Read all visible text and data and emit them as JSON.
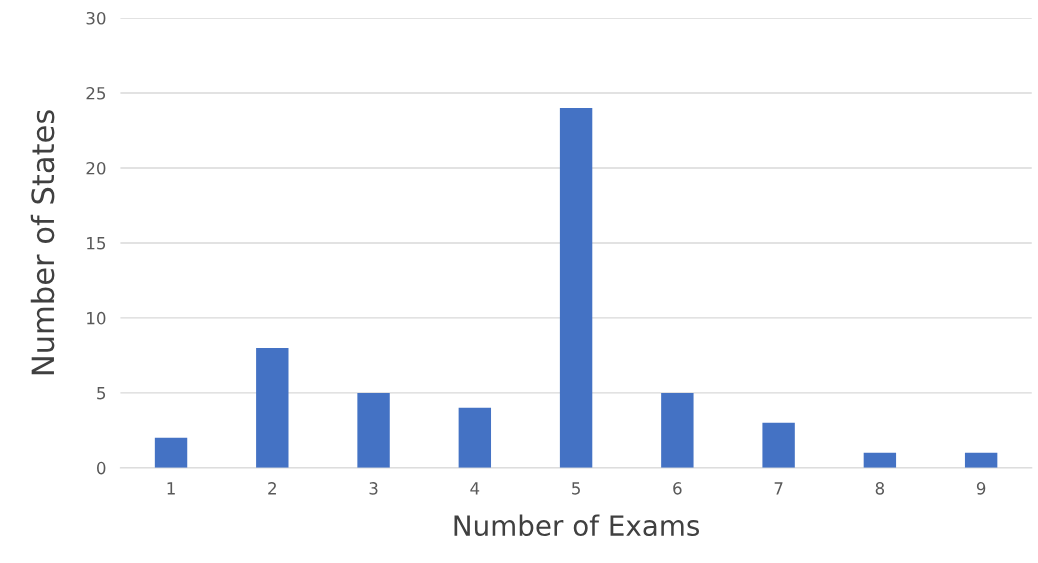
{
  "chart_data": {
    "type": "bar",
    "xlabel": "Number of Exams",
    "ylabel": "Number of States",
    "categories": [
      "1",
      "2",
      "3",
      "4",
      "5",
      "6",
      "7",
      "8",
      "9"
    ],
    "values": [
      2,
      8,
      5,
      4,
      24,
      5,
      3,
      1,
      1
    ],
    "color": "#4472c4",
    "ylim": [
      0,
      30
    ],
    "yticks": [
      0,
      5,
      10,
      15,
      20,
      25,
      30
    ],
    "grid": "y",
    "legend": false
  }
}
